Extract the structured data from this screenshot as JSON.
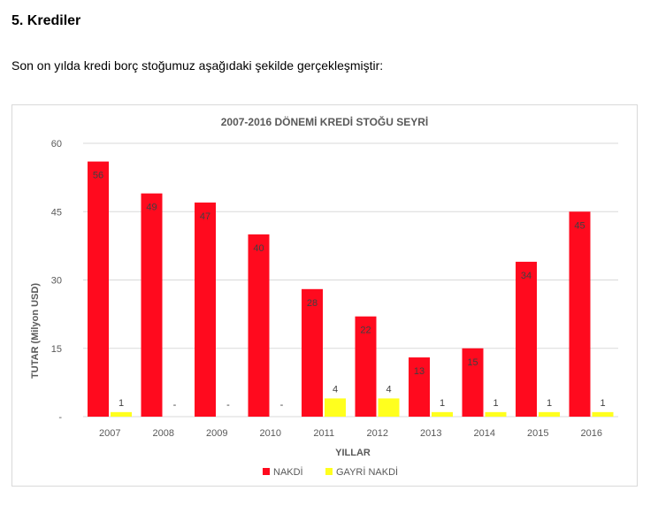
{
  "document": {
    "heading": "5. Krediler",
    "intro": "Son on yılda kredi borç stoğumuz aşağıdaki şekilde gerçekleşmiştir:"
  },
  "colors": {
    "nakdi": "#ff0a1e",
    "gayri_nakdi": "#ffff1e",
    "grid": "#d9d9d9",
    "text": "#595959"
  },
  "chart_data": {
    "type": "bar",
    "title": "2007-2016 DÖNEMİ KREDİ STOĞU SEYRİ",
    "xlabel": "YILLAR",
    "ylabel": "TUTAR (Milyon USD)",
    "ylim": [
      0,
      60
    ],
    "yticks": [
      0,
      15,
      30,
      45,
      60
    ],
    "ytick_labels": [
      "-",
      "15",
      "30",
      "45",
      "60"
    ],
    "grid": true,
    "legend_position": "bottom",
    "categories": [
      "2007",
      "2008",
      "2009",
      "2010",
      "2011",
      "2012",
      "2013",
      "2014",
      "2015",
      "2016"
    ],
    "series": [
      {
        "name": "NAKDİ",
        "values": [
          56,
          49,
          47,
          40,
          28,
          22,
          13,
          15,
          34,
          45
        ],
        "labels": [
          "56",
          "49",
          "47",
          "40",
          "28",
          "22",
          "13",
          "15",
          "34",
          "45"
        ]
      },
      {
        "name": "GAYRİ NAKDİ",
        "values": [
          1,
          0,
          0,
          0,
          4,
          4,
          1,
          1,
          1,
          1
        ],
        "labels": [
          "1",
          "-",
          "-",
          "-",
          "4",
          "4",
          "1",
          "1",
          "1",
          "1"
        ]
      }
    ]
  }
}
